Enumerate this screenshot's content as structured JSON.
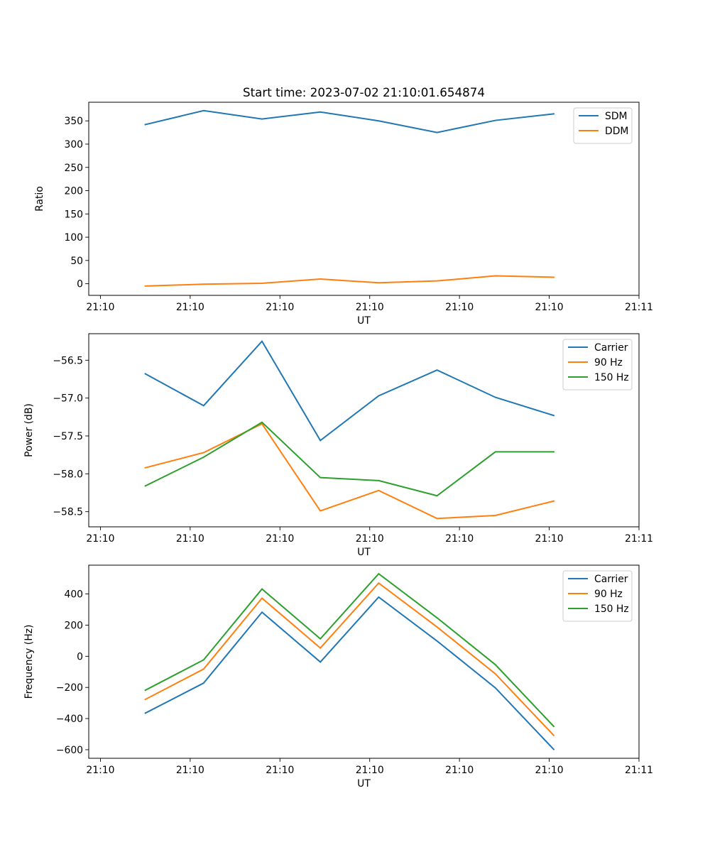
{
  "chart_data": [
    {
      "type": "line",
      "title": "Start time: 2023-07-02 21:10:01.654874",
      "xlabel": "UT",
      "ylabel": "Ratio",
      "x_tick_labels": [
        "21:10",
        "21:10",
        "21:10",
        "21:10",
        "21:10",
        "21:10",
        "21:11"
      ],
      "x_tick_values": [
        0,
        1,
        2,
        3,
        4,
        5,
        6
      ],
      "xlim": [
        -0.13,
        6.0
      ],
      "x": [
        0.5,
        1.15,
        1.8,
        2.45,
        3.1,
        3.75,
        4.4,
        5.05
      ],
      "ylim": [
        -25,
        390
      ],
      "y_ticks": [
        0,
        50,
        100,
        150,
        200,
        250,
        300,
        350
      ],
      "legend_location": "top-right",
      "series": [
        {
          "name": "SDM",
          "color": "#1f77b4",
          "values": [
            342,
            372,
            354,
            369,
            350,
            325,
            351,
            365
          ]
        },
        {
          "name": "DDM",
          "color": "#ff7f0e",
          "values": [
            -5,
            -1,
            1,
            10,
            2,
            6,
            17,
            14
          ]
        }
      ]
    },
    {
      "type": "line",
      "title": "",
      "xlabel": "UT",
      "ylabel": "Power (dB)",
      "x_tick_labels": [
        "21:10",
        "21:10",
        "21:10",
        "21:10",
        "21:10",
        "21:10",
        "21:11"
      ],
      "x_tick_values": [
        0,
        1,
        2,
        3,
        4,
        5,
        6
      ],
      "xlim": [
        -0.13,
        6.0
      ],
      "x": [
        0.5,
        1.15,
        1.8,
        2.45,
        3.1,
        3.75,
        4.4,
        5.05
      ],
      "ylim": [
        -58.7,
        -56.15
      ],
      "y_ticks": [
        -58.5,
        -58.0,
        -57.5,
        -57.0,
        -56.5
      ],
      "y_tick_labels": [
        "−58.5",
        "−58.0",
        "−57.5",
        "−57.0",
        "−56.5"
      ],
      "legend_location": "top-right",
      "series": [
        {
          "name": "Carrier",
          "color": "#1f77b4",
          "values": [
            -56.68,
            -57.1,
            -56.25,
            -57.56,
            -56.97,
            -56.63,
            -56.99,
            -57.23
          ]
        },
        {
          "name": "90 Hz",
          "color": "#ff7f0e",
          "values": [
            -57.92,
            -57.72,
            -57.34,
            -58.49,
            -58.22,
            -58.59,
            -58.55,
            -58.36
          ]
        },
        {
          "name": "150 Hz",
          "color": "#2ca02c",
          "values": [
            -58.16,
            -57.78,
            -57.32,
            -58.05,
            -58.09,
            -58.29,
            -57.71,
            -57.71
          ]
        }
      ]
    },
    {
      "type": "line",
      "title": "",
      "xlabel": "UT",
      "ylabel": "Frequency (Hz)",
      "x_tick_labels": [
        "21:10",
        "21:10",
        "21:10",
        "21:10",
        "21:10",
        "21:10",
        "21:11"
      ],
      "x_tick_values": [
        0,
        1,
        2,
        3,
        4,
        5,
        6
      ],
      "xlim": [
        -0.13,
        6.0
      ],
      "x": [
        0.5,
        1.15,
        1.8,
        2.45,
        3.1,
        3.75,
        4.4,
        5.05
      ],
      "ylim": [
        -655,
        585
      ],
      "y_ticks": [
        -600,
        -400,
        -200,
        0,
        200,
        400
      ],
      "y_tick_labels": [
        "−600",
        "−400",
        "−200",
        "0",
        "200",
        "400"
      ],
      "legend_location": "top-right",
      "series": [
        {
          "name": "Carrier",
          "color": "#1f77b4",
          "values": [
            -365,
            -172,
            283,
            -37,
            380,
            98,
            -203,
            -598
          ]
        },
        {
          "name": "90 Hz",
          "color": "#ff7f0e",
          "values": [
            -277,
            -82,
            373,
            53,
            470,
            188,
            -113,
            -508
          ]
        },
        {
          "name": "150 Hz",
          "color": "#2ca02c",
          "values": [
            -218,
            -23,
            432,
            112,
            530,
            247,
            -54,
            -450
          ]
        }
      ]
    }
  ]
}
